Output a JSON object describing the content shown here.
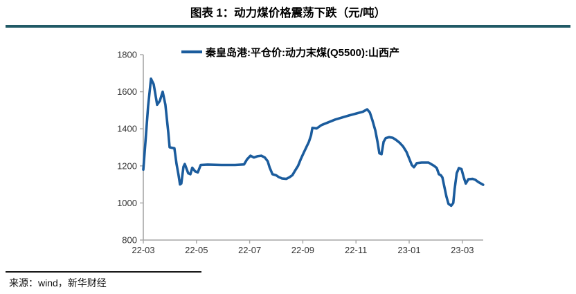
{
  "title": "图表 1：动力煤价格震荡下跌（元/吨）",
  "source": "来源：wind，新华财经",
  "colors": {
    "accent_rule": "#215A66",
    "line": "#1B5C9D",
    "axis": "#A6A6A6",
    "tick_text": "#333333"
  },
  "chart_data": {
    "type": "line",
    "title": "图表 1：动力煤价格震荡下跌（元/吨）",
    "xlabel": "",
    "ylabel": "",
    "grid": false,
    "legend_position": "top-center",
    "ylim": [
      800,
      1800
    ],
    "yticks": [
      800,
      1000,
      1200,
      1400,
      1600,
      1800
    ],
    "xtick_labels": [
      "22-03",
      "22-05",
      "22-07",
      "22-09",
      "22-11",
      "23-01",
      "23-03"
    ],
    "xtick_months": [
      0,
      2,
      4,
      6,
      8,
      10,
      12
    ],
    "xlim_months": [
      0,
      12.8
    ],
    "series": [
      {
        "name": "秦皇岛港:平仓价:动力末煤(Q5500):山西产",
        "color": "#1B5C9D",
        "points": [
          [
            0.0,
            1180
          ],
          [
            0.08,
            1330
          ],
          [
            0.18,
            1520
          ],
          [
            0.29,
            1670
          ],
          [
            0.39,
            1640
          ],
          [
            0.52,
            1530
          ],
          [
            0.62,
            1550
          ],
          [
            0.73,
            1600
          ],
          [
            0.83,
            1530
          ],
          [
            0.94,
            1380
          ],
          [
            0.99,
            1300
          ],
          [
            1.17,
            1295
          ],
          [
            1.25,
            1210
          ],
          [
            1.32,
            1155
          ],
          [
            1.38,
            1100
          ],
          [
            1.43,
            1105
          ],
          [
            1.51,
            1195
          ],
          [
            1.56,
            1210
          ],
          [
            1.69,
            1160
          ],
          [
            1.77,
            1155
          ],
          [
            1.84,
            1190
          ],
          [
            1.95,
            1170
          ],
          [
            2.05,
            1165
          ],
          [
            2.16,
            1205
          ],
          [
            2.42,
            1207
          ],
          [
            2.94,
            1205
          ],
          [
            3.45,
            1205
          ],
          [
            3.79,
            1208
          ],
          [
            3.9,
            1235
          ],
          [
            4.03,
            1255
          ],
          [
            4.16,
            1245
          ],
          [
            4.29,
            1252
          ],
          [
            4.44,
            1255
          ],
          [
            4.57,
            1245
          ],
          [
            4.68,
            1225
          ],
          [
            4.75,
            1192
          ],
          [
            4.86,
            1155
          ],
          [
            4.99,
            1150
          ],
          [
            5.09,
            1140
          ],
          [
            5.22,
            1132
          ],
          [
            5.38,
            1130
          ],
          [
            5.51,
            1140
          ],
          [
            5.61,
            1150
          ],
          [
            5.71,
            1175
          ],
          [
            5.82,
            1200
          ],
          [
            5.92,
            1235
          ],
          [
            6.03,
            1270
          ],
          [
            6.13,
            1300
          ],
          [
            6.23,
            1330
          ],
          [
            6.31,
            1365
          ],
          [
            6.36,
            1405
          ],
          [
            6.52,
            1402
          ],
          [
            6.7,
            1420
          ],
          [
            7.22,
            1450
          ],
          [
            7.74,
            1472
          ],
          [
            8.26,
            1492
          ],
          [
            8.42,
            1505
          ],
          [
            8.52,
            1488
          ],
          [
            8.62,
            1445
          ],
          [
            8.73,
            1390
          ],
          [
            8.81,
            1330
          ],
          [
            8.88,
            1268
          ],
          [
            8.96,
            1263
          ],
          [
            9.04,
            1330
          ],
          [
            9.12,
            1350
          ],
          [
            9.25,
            1355
          ],
          [
            9.38,
            1352
          ],
          [
            9.51,
            1340
          ],
          [
            9.64,
            1325
          ],
          [
            9.77,
            1305
          ],
          [
            9.9,
            1275
          ],
          [
            10.0,
            1240
          ],
          [
            10.1,
            1205
          ],
          [
            10.18,
            1193
          ],
          [
            10.29,
            1215
          ],
          [
            10.47,
            1218
          ],
          [
            10.73,
            1218
          ],
          [
            10.94,
            1200
          ],
          [
            11.04,
            1188
          ],
          [
            11.12,
            1155
          ],
          [
            11.19,
            1150
          ],
          [
            11.25,
            1138
          ],
          [
            11.32,
            1090
          ],
          [
            11.4,
            1035
          ],
          [
            11.48,
            995
          ],
          [
            11.58,
            985
          ],
          [
            11.66,
            1000
          ],
          [
            11.71,
            1075
          ],
          [
            11.79,
            1160
          ],
          [
            11.87,
            1188
          ],
          [
            11.97,
            1183
          ],
          [
            12.05,
            1140
          ],
          [
            12.13,
            1105
          ],
          [
            12.23,
            1128
          ],
          [
            12.39,
            1130
          ],
          [
            12.49,
            1125
          ],
          [
            12.6,
            1113
          ],
          [
            12.7,
            1105
          ],
          [
            12.78,
            1098
          ]
        ]
      }
    ]
  }
}
